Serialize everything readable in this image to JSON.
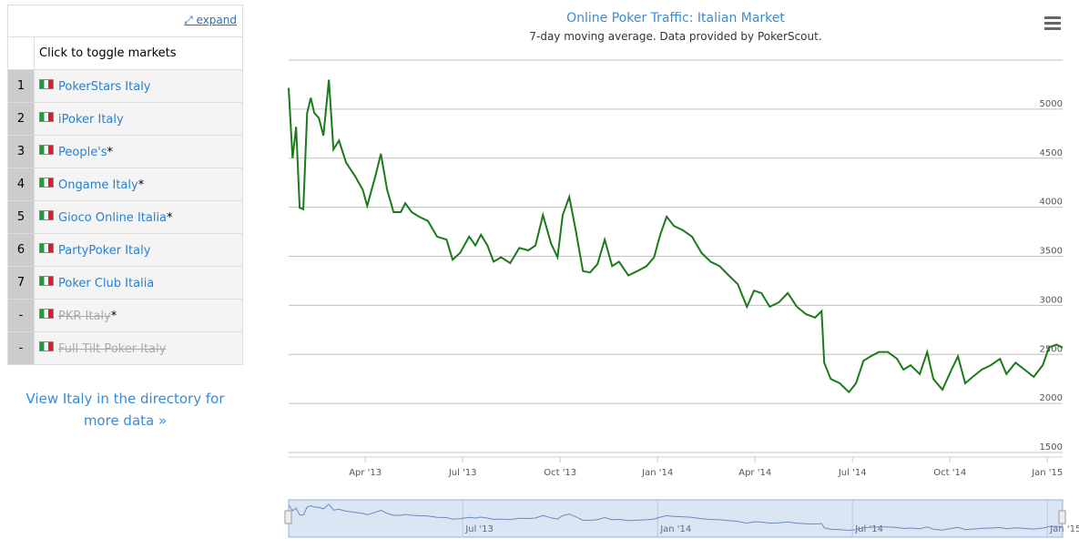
{
  "sidebar": {
    "expand": "expand",
    "header": "Click to toggle markets",
    "rows": [
      {
        "rank": "1",
        "name": "PokerStars Italy"
      },
      {
        "rank": "2",
        "name": "iPoker Italy"
      },
      {
        "rank": "3",
        "name": "People's",
        "asterisk": "*"
      },
      {
        "rank": "4",
        "name": "Ongame Italy",
        "asterisk": "*"
      },
      {
        "rank": "5",
        "name": "Gioco Online Italia",
        "asterisk": "*"
      },
      {
        "rank": "6",
        "name": "PartyPoker Italy"
      },
      {
        "rank": "7",
        "name": "Poker Club Italia"
      },
      {
        "rank": "-",
        "name": "PKR Italy",
        "asterisk": "*",
        "enabled": false
      },
      {
        "rank": "-",
        "name": "Full Tilt Poker Italy",
        "enabled": false
      }
    ],
    "link": "View Italy in the directory for more data »"
  },
  "chart_data": {
    "type": "line",
    "title": "Online Poker Traffic: Italian Market",
    "subtitle": "7-day moving average. Data provided by PokerScout.",
    "x": [
      0.64,
      0.76,
      0.87,
      0.98,
      1.09,
      1.21,
      1.32,
      1.43,
      1.57,
      1.71,
      1.88,
      2.02,
      2.19,
      2.41,
      2.69,
      2.92,
      3.06,
      3.31,
      3.48,
      3.67,
      3.87,
      4.09,
      4.23,
      4.43,
      4.65,
      4.93,
      5.21,
      5.5,
      5.69,
      5.92,
      6.2,
      6.39,
      6.56,
      6.76,
      6.95,
      7.18,
      7.46,
      7.74,
      8.02,
      8.24,
      8.47,
      8.72,
      8.92,
      9.08,
      9.28,
      9.48,
      9.7,
      9.92,
      10.15,
      10.37,
      10.6,
      10.81,
      11.1,
      11.38,
      11.66,
      11.89,
      12.08,
      12.28,
      12.5,
      12.78,
      13.06,
      13.35,
      13.63,
      13.91,
      14.19,
      14.47,
      14.75,
      14.97,
      15.2,
      15.45,
      15.73,
      16.01,
      16.29,
      16.57,
      16.85,
      17.05,
      17.13,
      17.33,
      17.61,
      17.89,
      18.11,
      18.34,
      18.56,
      18.81,
      19.09,
      19.37,
      19.57,
      19.79,
      20.07,
      20.3,
      20.49,
      20.77,
      21.05,
      21.25,
      21.47,
      21.7,
      21.98,
      22.26,
      22.54,
      22.74,
      23.02,
      23.3,
      23.58,
      23.86,
      24.05,
      24.28,
      24.47
    ],
    "series": [
      {
        "color": "#1a7a1a",
        "values": [
          5216,
          4500,
          4820,
          3995,
          3980,
          4960,
          5115,
          4960,
          4910,
          4730,
          5300,
          4590,
          4680,
          4455,
          4315,
          4180,
          4015,
          4315,
          4545,
          4180,
          3950,
          3950,
          4040,
          3950,
          3905,
          3860,
          3700,
          3670,
          3465,
          3535,
          3700,
          3610,
          3720,
          3610,
          3445,
          3490,
          3430,
          3585,
          3560,
          3610,
          3920,
          3630,
          3490,
          3920,
          4105,
          3765,
          3350,
          3335,
          3420,
          3670,
          3400,
          3445,
          3305,
          3350,
          3400,
          3490,
          3720,
          3905,
          3810,
          3765,
          3700,
          3535,
          3445,
          3400,
          3305,
          3215,
          2985,
          3150,
          3125,
          2985,
          3030,
          3125,
          2985,
          2910,
          2875,
          2940,
          2415,
          2250,
          2205,
          2115,
          2205,
          2435,
          2480,
          2525,
          2525,
          2455,
          2345,
          2390,
          2300,
          2525,
          2250,
          2140,
          2345,
          2480,
          2205,
          2270,
          2345,
          2390,
          2455,
          2300,
          2415,
          2345,
          2270,
          2390,
          2570,
          2600,
          2570
        ]
      }
    ],
    "xlim": [
      0.64,
      24.47
    ],
    "xticks": [
      {
        "value": 3,
        "label": "Apr '13"
      },
      {
        "value": 6,
        "label": "Jul '13"
      },
      {
        "value": 9,
        "label": "Oct '13"
      },
      {
        "value": 12,
        "label": "Jan '14"
      },
      {
        "value": 15,
        "label": "Apr '14"
      },
      {
        "value": 18,
        "label": "Jul '14"
      },
      {
        "value": 21,
        "label": "Oct '14"
      },
      {
        "value": 24,
        "label": "Jan '15"
      }
    ],
    "ylim": [
      1500,
      5500
    ],
    "yticks": [
      1500,
      2000,
      2500,
      3000,
      3500,
      4000,
      4500,
      5000
    ],
    "grid": true,
    "navigator": {
      "color": "#6a8bbf",
      "xticks": [
        {
          "value": 6,
          "label": "Jul '13"
        },
        {
          "value": 12,
          "label": "Jan '14"
        },
        {
          "value": 18,
          "label": "Jul '14"
        },
        {
          "value": 24,
          "label": "Jan '15"
        }
      ]
    }
  }
}
